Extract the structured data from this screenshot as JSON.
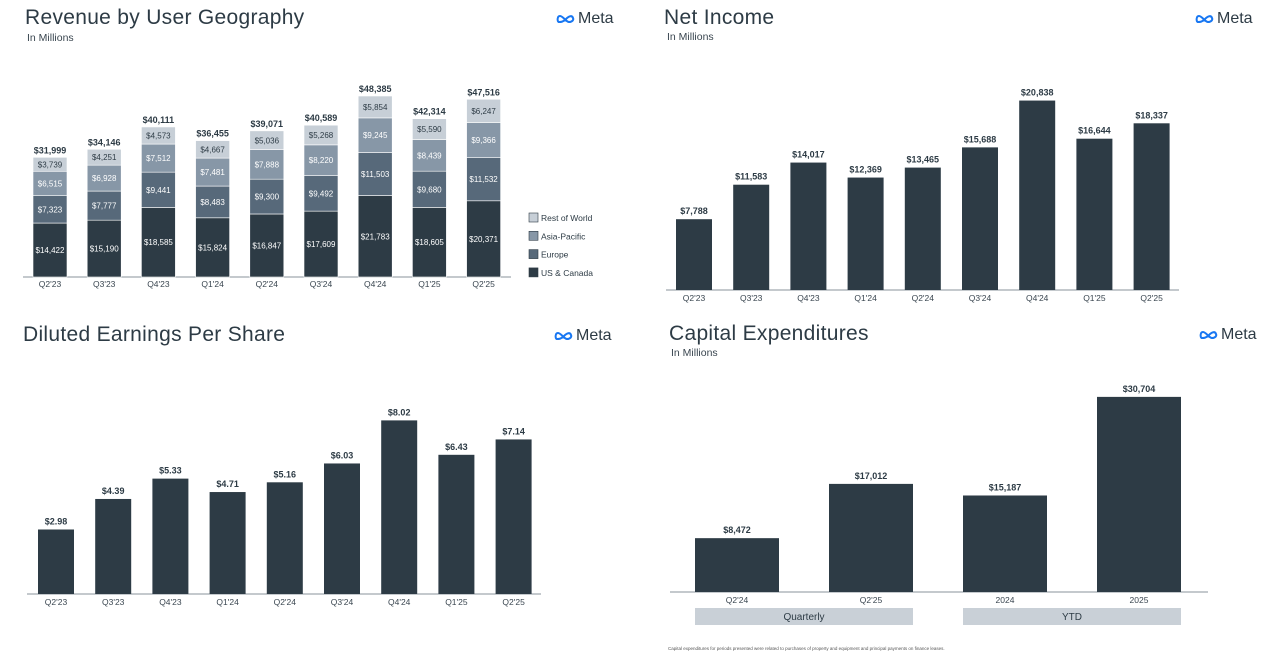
{
  "logo": {
    "text": "Meta"
  },
  "colors": {
    "us_canada": "#2d3b45",
    "europe": "#57697a",
    "asia_pacific": "#8797a7",
    "rest_of_world": "#c7cfd7",
    "bar": "#2d3b45",
    "axis": "#8a939b",
    "group_band": "#c9d0d7"
  },
  "panels": {
    "revenue": {
      "title": "Revenue by User Geography",
      "subtitle": "In Millions"
    },
    "net_income": {
      "title": "Net Income",
      "subtitle": "In Millions"
    },
    "eps": {
      "title": "Diluted Earnings Per Share"
    },
    "capex": {
      "title": "Capital Expenditures",
      "subtitle": "In Millions"
    }
  },
  "footnote": "Capital expenditures for periods presented were related to purchases of property and equipment and principal payments on finance leases.",
  "chart_data": [
    {
      "id": "revenue",
      "type": "bar",
      "stacked": true,
      "title": "Revenue by User Geography",
      "subtitle": "In Millions",
      "categories": [
        "Q2'23",
        "Q3'23",
        "Q4'23",
        "Q1'24",
        "Q2'24",
        "Q3'24",
        "Q4'24",
        "Q1'25",
        "Q2'25"
      ],
      "series": [
        {
          "name": "US & Canada",
          "values": [
            14422,
            15190,
            18585,
            15824,
            16847,
            17609,
            21783,
            18605,
            20371
          ],
          "labels": [
            "$14,422",
            "$15,190",
            "$18,585",
            "$15,824",
            "$16,847",
            "$17,609",
            "$21,783",
            "$18,605",
            "$20,371"
          ]
        },
        {
          "name": "Europe",
          "values": [
            7323,
            7777,
            9441,
            8483,
            9300,
            9492,
            11503,
            9680,
            11532
          ],
          "labels": [
            "$7,323",
            "$7,777",
            "$9,441",
            "$8,483",
            "$9,300",
            "$9,492",
            "$11,503",
            "$9,680",
            "$11,532"
          ]
        },
        {
          "name": "Asia-Pacific",
          "values": [
            6515,
            6928,
            7512,
            7481,
            7888,
            8220,
            9245,
            8439,
            9366
          ],
          "labels": [
            "$6,515",
            "$6,928",
            "$7,512",
            "$7,481",
            "$7,888",
            "$8,220",
            "$9,245",
            "$8,439",
            "$9,366"
          ]
        },
        {
          "name": "Rest of World",
          "values": [
            3739,
            4251,
            4573,
            4667,
            5036,
            5268,
            5854,
            5590,
            6247
          ],
          "labels": [
            "$3,739",
            "$4,251",
            "$4,573",
            "$4,667",
            "$5,036",
            "$5,268",
            "$5,854",
            "$5,590",
            "$6,247"
          ]
        }
      ],
      "totals": [
        "$31,999",
        "$34,146",
        "$40,111",
        "$36,455",
        "$39,071",
        "$40,589",
        "$48,385",
        "$42,314",
        "$47,516"
      ],
      "legend_order": [
        "Rest of World",
        "Asia-Pacific",
        "Europe",
        "US & Canada"
      ],
      "legend": "right",
      "ylim": [
        0,
        52000
      ],
      "grid": false
    },
    {
      "id": "net_income",
      "type": "bar",
      "title": "Net Income",
      "subtitle": "In Millions",
      "categories": [
        "Q2'23",
        "Q3'23",
        "Q4'23",
        "Q1'24",
        "Q2'24",
        "Q3'24",
        "Q4'24",
        "Q1'25",
        "Q2'25"
      ],
      "values": [
        7788,
        11583,
        14017,
        12369,
        13465,
        15688,
        20838,
        16644,
        18337
      ],
      "labels": [
        "$7,788",
        "$11,583",
        "$14,017",
        "$12,369",
        "$13,465",
        "$15,688",
        "$20,838",
        "$16,644",
        "$18,337"
      ],
      "ylim": [
        0,
        22000
      ],
      "grid": false
    },
    {
      "id": "eps",
      "type": "bar",
      "title": "Diluted Earnings Per Share",
      "categories": [
        "Q2'23",
        "Q3'23",
        "Q4'23",
        "Q1'24",
        "Q2'24",
        "Q3'24",
        "Q4'24",
        "Q1'25",
        "Q2'25"
      ],
      "values": [
        2.98,
        4.39,
        5.33,
        4.71,
        5.16,
        6.03,
        8.02,
        6.43,
        7.14
      ],
      "labels": [
        "$2.98",
        "$4.39",
        "$5.33",
        "$4.71",
        "$5.16",
        "$6.03",
        "$8.02",
        "$6.43",
        "$7.14"
      ],
      "ylim": [
        0,
        8.5
      ],
      "grid": false
    },
    {
      "id": "capex",
      "type": "bar",
      "title": "Capital Expenditures",
      "subtitle": "In Millions",
      "categories": [
        "Q2'24",
        "Q2'25",
        "2024",
        "2025"
      ],
      "values": [
        8472,
        17012,
        15187,
        30704
      ],
      "labels": [
        "$8,472",
        "$17,012",
        "$15,187",
        "$30,704"
      ],
      "groups": [
        {
          "name": "Quarterly",
          "categories": [
            "Q2'24",
            "Q2'25"
          ]
        },
        {
          "name": "YTD",
          "categories": [
            "2024",
            "2025"
          ]
        }
      ],
      "ylim": [
        0,
        31000
      ],
      "grid": false
    }
  ]
}
